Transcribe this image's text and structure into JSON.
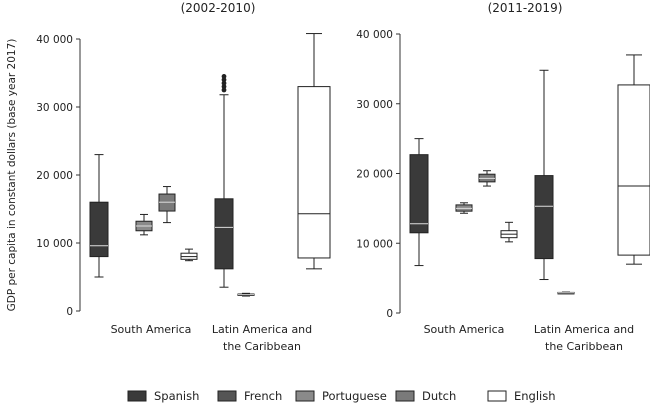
{
  "chart_data": [
    {
      "type": "box",
      "title": "(2002-2010)",
      "ylabel": "GDP per capita in constant dollars (base year 2017)",
      "ylim": [
        0,
        40000
      ],
      "y_ticks": [
        "0",
        "10 000",
        "20 000",
        "30 000",
        "40 000"
      ],
      "categories": [
        "South America",
        "Latin America and the Caribbean"
      ],
      "series": [
        {
          "name": "Spanish",
          "boxes": [
            {
              "min": 5000,
              "q1": 8000,
              "median": 9600,
              "q3": 16000,
              "max": 23000,
              "outliers": []
            },
            {
              "min": 3500,
              "q1": 6200,
              "median": 12300,
              "q3": 16500,
              "max": 31800,
              "outliers": [
                32500,
                33000,
                33500,
                34000,
                34500
              ]
            }
          ]
        },
        {
          "name": "French",
          "boxes": [
            null,
            {
              "min": 2200,
              "q1": 2300,
              "median": 2400,
              "q3": 2500,
              "max": 2600,
              "outliers": []
            }
          ]
        },
        {
          "name": "Portuguese",
          "boxes": [
            {
              "min": 11200,
              "q1": 11800,
              "median": 12500,
              "q3": 13200,
              "max": 14200,
              "outliers": []
            },
            null
          ]
        },
        {
          "name": "Dutch",
          "boxes": [
            {
              "min": 13000,
              "q1": 14700,
              "median": 16000,
              "q3": 17200,
              "max": 18300,
              "outliers": []
            },
            null
          ]
        },
        {
          "name": "English",
          "boxes": [
            {
              "min": 7400,
              "q1": 7600,
              "median": 8000,
              "q3": 8500,
              "max": 9100,
              "outliers": []
            },
            {
              "min": 6200,
              "q1": 7800,
              "median": 14300,
              "q3": 33000,
              "max": 40800,
              "outliers": []
            }
          ]
        }
      ]
    },
    {
      "type": "box",
      "title": "(2011-2019)",
      "ylabel": "",
      "ylim": [
        0,
        40000
      ],
      "y_ticks": [
        "0",
        "10 000",
        "20 000",
        "30 000",
        "40 000"
      ],
      "categories": [
        "South America",
        "Latin America and the Caribbean"
      ],
      "series": [
        {
          "name": "Spanish",
          "boxes": [
            {
              "min": 6800,
              "q1": 11500,
              "median": 12800,
              "q3": 22700,
              "max": 25000,
              "outliers": []
            },
            {
              "min": 4800,
              "q1": 7800,
              "median": 15300,
              "q3": 19700,
              "max": 34800,
              "outliers": []
            }
          ]
        },
        {
          "name": "French",
          "boxes": [
            null,
            {
              "min": 2800,
              "q1": 2850,
              "median": 2900,
              "q3": 2950,
              "max": 3000,
              "outliers": []
            }
          ]
        },
        {
          "name": "Portuguese",
          "boxes": [
            {
              "min": 14300,
              "q1": 14600,
              "median": 15000,
              "q3": 15500,
              "max": 15800,
              "outliers": []
            },
            null
          ]
        },
        {
          "name": "Dutch",
          "boxes": [
            {
              "min": 18200,
              "q1": 18800,
              "median": 19300,
              "q3": 19900,
              "max": 20400,
              "outliers": []
            },
            null
          ]
        },
        {
          "name": "English",
          "boxes": [
            {
              "min": 10200,
              "q1": 10800,
              "median": 11300,
              "q3": 11800,
              "max": 13000,
              "outliers": []
            },
            {
              "min": 7000,
              "q1": 8300,
              "median": 18200,
              "q3": 32700,
              "max": 37000,
              "outliers": []
            }
          ]
        }
      ]
    }
  ],
  "legend": {
    "placement": "bottom",
    "items": [
      {
        "label": "Spanish",
        "color": "#3a3a3a"
      },
      {
        "label": "French",
        "color": "#555555"
      },
      {
        "label": "Portuguese",
        "color": "#8a8a8a"
      },
      {
        "label": "Dutch",
        "color": "#7a7a7a"
      },
      {
        "label": "English",
        "color": "#ffffff"
      }
    ]
  }
}
